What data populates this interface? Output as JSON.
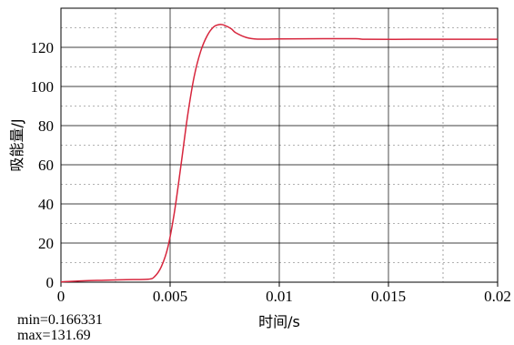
{
  "chart_data": {
    "type": "line",
    "xlabel": "时间/s",
    "ylabel": "吸能量/J",
    "xlim": [
      0,
      0.02
    ],
    "ylim": [
      0,
      140
    ],
    "x_ticks": [
      "0",
      "0.005",
      "0.01",
      "0.015",
      "0.02"
    ],
    "y_ticks": [
      "0",
      "20",
      "40",
      "60",
      "80",
      "100",
      "120"
    ],
    "grid": true,
    "series": [
      {
        "color": "#d7263d",
        "x": [
          0,
          0.001,
          0.002,
          0.003,
          0.004,
          0.0043,
          0.0046,
          0.0049,
          0.0052,
          0.0055,
          0.0058,
          0.0061,
          0.0064,
          0.0067,
          0.007,
          0.0073,
          0.0075,
          0.0078,
          0.008,
          0.0085,
          0.009,
          0.01,
          0.012,
          0.0135,
          0.014,
          0.016,
          0.018,
          0.02
        ],
        "y": [
          0.17,
          0.7,
          1.0,
          1.3,
          1.5,
          3,
          8,
          18,
          36,
          60,
          85,
          105,
          118,
          126,
          130.5,
          131.69,
          131.2,
          129.5,
          127.5,
          125,
          124.2,
          124.3,
          124.4,
          124.4,
          124.1,
          124.1,
          124.1,
          124.1
        ]
      }
    ]
  },
  "stats": {
    "min": "min=0.166331",
    "max": "max=131.69"
  }
}
